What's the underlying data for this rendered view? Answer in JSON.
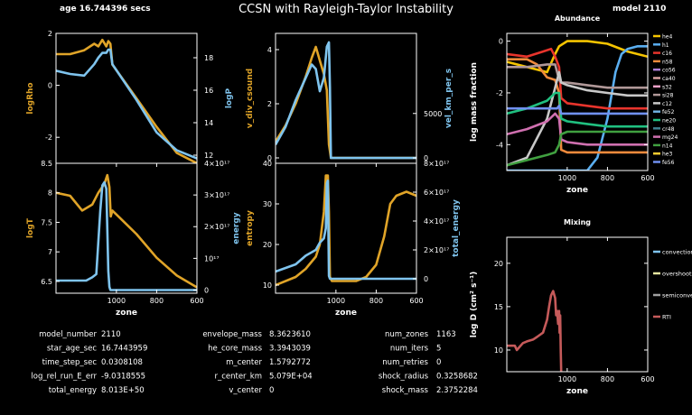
{
  "header": {
    "age": "age 16.744396 secs",
    "title": "CCSN with Rayleigh-Taylor Instability",
    "model": "model 2110"
  },
  "colors": {
    "gold": "#e0a428",
    "blue": "#7fc4ee",
    "red": "#c55a5a",
    "background": "#000000",
    "axes": "#ffffff"
  },
  "chart_data": [
    {
      "id": "logRho_logP",
      "type": "line",
      "xlabel": "",
      "xlim": [
        1300,
        600
      ],
      "x_ticks": [],
      "left_axis": {
        "label": "logRho",
        "ylim": [
          -3,
          2
        ],
        "ticks": [
          "2",
          "0",
          "-2"
        ],
        "tick_values": [
          2,
          0,
          -2
        ]
      },
      "right_axis": {
        "label": "logP",
        "ylim": [
          11.5,
          19.5
        ],
        "ticks": [
          "18",
          "16",
          "14",
          "12"
        ],
        "tick_values": [
          18,
          16,
          14,
          12
        ]
      },
      "series": [
        {
          "name": "logRho",
          "axis": "left",
          "color": "#e0a428",
          "x": [
            1300,
            1230,
            1160,
            1110,
            1090,
            1070,
            1050,
            1040,
            1030,
            1020,
            900,
            800,
            700,
            600
          ],
          "y": [
            1.2,
            1.2,
            1.35,
            1.6,
            1.5,
            1.75,
            1.5,
            1.7,
            1.6,
            0.8,
            -0.5,
            -1.6,
            -2.6,
            -3.0
          ]
        },
        {
          "name": "logP",
          "axis": "right",
          "color": "#7fc4ee",
          "x": [
            1300,
            1230,
            1160,
            1110,
            1090,
            1070,
            1050,
            1040,
            1030,
            1020,
            900,
            800,
            700,
            600
          ],
          "y": [
            17.2,
            17.0,
            16.9,
            17.6,
            18.0,
            18.3,
            18.3,
            18.5,
            18.5,
            17.6,
            15.4,
            13.4,
            12.3,
            11.8
          ]
        }
      ]
    },
    {
      "id": "logT_energy",
      "type": "line",
      "xlabel": "zone",
      "xlim": [
        1300,
        600
      ],
      "x_ticks": [
        "1000",
        "800",
        "600"
      ],
      "x_tick_values": [
        1000,
        800,
        600
      ],
      "left_axis": {
        "label": "logT",
        "ylim": [
          6.3,
          8.5
        ],
        "ticks": [
          "8.5",
          "8",
          "7.5",
          "7",
          "6.5"
        ],
        "tick_values": [
          8.5,
          8,
          7.5,
          7,
          6.5
        ]
      },
      "right_axis": {
        "label": "energy",
        "ylim": [
          -0.1,
          4.0
        ],
        "ticks": [
          "4×10¹⁷",
          "3×10¹⁷",
          "2×10¹⁷",
          "10¹⁷",
          "0"
        ],
        "tick_values": [
          4,
          3,
          2,
          1,
          0
        ]
      },
      "series": [
        {
          "name": "logT",
          "axis": "left",
          "color": "#e0a428",
          "x": [
            1300,
            1230,
            1170,
            1120,
            1090,
            1060,
            1045,
            1035,
            1028,
            1020,
            900,
            800,
            700,
            600
          ],
          "y": [
            8.0,
            7.95,
            7.7,
            7.8,
            8.0,
            8.15,
            8.3,
            8.1,
            7.6,
            7.7,
            7.3,
            6.9,
            6.6,
            6.4
          ]
        },
        {
          "name": "energy",
          "axis": "right",
          "color": "#7fc4ee",
          "x": [
            1300,
            1200,
            1150,
            1120,
            1100,
            1090,
            1080,
            1070,
            1060,
            1050,
            1040,
            1035,
            1030,
            1025,
            1000,
            900,
            800,
            700,
            600
          ],
          "y": [
            0.3,
            0.3,
            0.3,
            0.4,
            0.5,
            1.5,
            2.5,
            3.3,
            3.4,
            3.2,
            0.6,
            0.1,
            0.0,
            0.0,
            0.0,
            0.0,
            0.0,
            0.0,
            0.0
          ]
        }
      ]
    },
    {
      "id": "vdivcs_velkm",
      "type": "line",
      "xlabel": "",
      "xlim": [
        1300,
        600
      ],
      "x_ticks": [],
      "left_axis": {
        "label": "v_div_csound",
        "ylim": [
          -0.2,
          4.6
        ],
        "ticks": [
          "4",
          "2",
          "0"
        ],
        "tick_values": [
          4,
          2,
          0
        ]
      },
      "right_axis": {
        "label": "vel_km_per_s",
        "ylim": [
          -600,
          14000
        ],
        "ticks": [
          "5000",
          "0"
        ],
        "tick_values": [
          5000,
          0
        ]
      },
      "series": [
        {
          "name": "v_div_csound",
          "axis": "left",
          "color": "#e0a428",
          "x": [
            1300,
            1250,
            1200,
            1150,
            1120,
            1100,
            1080,
            1060,
            1045,
            1035,
            1025,
            1000,
            900,
            800,
            700,
            600
          ],
          "y": [
            0.6,
            1.2,
            2.0,
            3.0,
            3.7,
            4.1,
            3.6,
            3.1,
            2.5,
            0.5,
            0.0,
            0.0,
            0.0,
            0.0,
            0.0,
            0.0
          ]
        },
        {
          "name": "vel_km_per_s",
          "axis": "right",
          "color": "#7fc4ee",
          "x": [
            1300,
            1250,
            1200,
            1150,
            1120,
            1100,
            1080,
            1060,
            1045,
            1035,
            1030,
            1025,
            1000,
            900,
            800,
            700,
            600
          ],
          "y": [
            1500,
            3500,
            6500,
            9000,
            10500,
            10000,
            7500,
            9000,
            12500,
            13000,
            8000,
            0,
            0,
            0,
            0,
            0,
            0
          ]
        }
      ]
    },
    {
      "id": "entropy_totalenergy",
      "type": "line",
      "xlabel": "zone",
      "xlim": [
        1300,
        600
      ],
      "x_ticks": [
        "1000",
        "800",
        "600"
      ],
      "x_tick_values": [
        1000,
        800,
        600
      ],
      "left_axis": {
        "label": "entropy",
        "ylim": [
          8,
          40
        ],
        "ticks": [
          "40",
          "30",
          "20",
          "10"
        ],
        "tick_values": [
          40,
          30,
          20,
          10
        ]
      },
      "right_axis": {
        "label": "total_energy",
        "ylim": [
          -1.0,
          8.0
        ],
        "ticks": [
          "8×10¹⁷",
          "6×10¹⁷",
          "4×10¹⁷",
          "2×10¹⁷",
          "0"
        ],
        "tick_values": [
          8,
          6,
          4,
          2,
          0
        ]
      },
      "series": [
        {
          "name": "entropy",
          "axis": "left",
          "color": "#e0a428",
          "x": [
            1300,
            1200,
            1150,
            1100,
            1080,
            1060,
            1050,
            1040,
            1035,
            1030,
            1020,
            1000,
            900,
            850,
            800,
            760,
            730,
            700,
            650,
            600
          ],
          "y": [
            10,
            12,
            14,
            17,
            20,
            28,
            37,
            37,
            28,
            12,
            11,
            11,
            11,
            12,
            15,
            22,
            30,
            32,
            33,
            32
          ]
        },
        {
          "name": "total_energy",
          "axis": "right",
          "color": "#7fc4ee",
          "x": [
            1300,
            1200,
            1150,
            1100,
            1080,
            1060,
            1050,
            1045,
            1040,
            1035,
            1030,
            1000,
            900,
            800,
            700,
            600
          ],
          "y": [
            0.5,
            1.0,
            1.6,
            2.0,
            2.5,
            2.8,
            3.5,
            6.6,
            6.8,
            0.2,
            0.0,
            0.0,
            0.0,
            0.0,
            0.0,
            0.0
          ]
        }
      ]
    },
    {
      "id": "abundance",
      "type": "line",
      "title": "Abundance",
      "xlabel": "zone",
      "ylabel": "log mass fraction",
      "xlim": [
        1300,
        600
      ],
      "ylim": [
        -5,
        0.3
      ],
      "x_ticks": [
        "1000",
        "800",
        "600"
      ],
      "x_tick_values": [
        1000,
        800,
        600
      ],
      "y_ticks": [
        "0",
        "-2",
        "-4"
      ],
      "y_tick_values": [
        0,
        -2,
        -4
      ],
      "legend": [
        {
          "name": "he4",
          "color": "#f5c400"
        },
        {
          "name": "h1",
          "color": "#5aaef0"
        },
        {
          "name": "c16",
          "color": "#e8342c"
        },
        {
          "name": "n58",
          "color": "#f08a3c"
        },
        {
          "name": "co56",
          "color": "#b07fd8"
        },
        {
          "name": "ca40",
          "color": "#d9a0a0"
        },
        {
          "name": "s32",
          "color": "#f0a0c8"
        },
        {
          "name": "si28",
          "color": "#b09898"
        },
        {
          "name": "c12",
          "color": "#c8c8c8"
        },
        {
          "name": "fe52",
          "color": "#70b0e0"
        },
        {
          "name": "ne20",
          "color": "#20c080"
        },
        {
          "name": "cr48",
          "color": "#408090"
        },
        {
          "name": "mg24",
          "color": "#d070b0"
        },
        {
          "name": "n14",
          "color": "#40a040"
        },
        {
          "name": "he3",
          "color": "#ffcc30"
        },
        {
          "name": "fe56",
          "color": "#7090f0"
        }
      ],
      "series": [
        {
          "name": "he4",
          "color": "#f5c400",
          "x": [
            1300,
            1100,
            1060,
            1040,
            1000,
            900,
            800,
            700,
            600
          ],
          "y": [
            -0.8,
            -1.2,
            -0.5,
            -0.2,
            0.0,
            0.0,
            -0.1,
            -0.4,
            -0.6
          ]
        },
        {
          "name": "h1",
          "color": "#5aaef0",
          "x": [
            1300,
            1050,
            1035,
            1000,
            900,
            850,
            800,
            760,
            730,
            700,
            650,
            600
          ],
          "y": [
            -5,
            -5,
            -5,
            -5,
            -5,
            -4.5,
            -3.0,
            -1.2,
            -0.5,
            -0.3,
            -0.2,
            -0.2
          ]
        },
        {
          "name": "c16",
          "color": "#e8342c",
          "x": [
            1300,
            1200,
            1120,
            1080,
            1060,
            1040,
            1030,
            1000,
            900,
            800,
            700,
            600
          ],
          "y": [
            -0.5,
            -0.6,
            -0.4,
            -0.3,
            -0.6,
            -1.0,
            -2.2,
            -2.4,
            -2.5,
            -2.6,
            -2.6,
            -2.6
          ]
        },
        {
          "name": "n58",
          "color": "#f08a3c",
          "x": [
            1300,
            1200,
            1150,
            1100,
            1060,
            1040,
            1030,
            1000,
            900,
            800,
            700,
            600
          ],
          "y": [
            -0.7,
            -0.7,
            -0.9,
            -1.4,
            -1.5,
            -2.0,
            -4.2,
            -4.3,
            -4.3,
            -4.3,
            -4.3,
            -4.3
          ]
        },
        {
          "name": "si28",
          "color": "#b09898",
          "x": [
            1300,
            1200,
            1100,
            1060,
            1040,
            1030,
            1000,
            900,
            800,
            700,
            600
          ],
          "y": [
            -1.0,
            -1.0,
            -0.9,
            -0.9,
            -1.5,
            -1.6,
            -1.6,
            -1.7,
            -1.8,
            -1.8,
            -1.8
          ]
        },
        {
          "name": "c12",
          "color": "#c8c8c8",
          "x": [
            1300,
            1200,
            1100,
            1060,
            1040,
            1030,
            1000,
            900,
            800,
            700,
            600
          ],
          "y": [
            -4.8,
            -4.5,
            -3.0,
            -1.8,
            -1.2,
            -1.6,
            -1.7,
            -1.9,
            -2.0,
            -2.1,
            -2.1
          ]
        },
        {
          "name": "ne20",
          "color": "#20c080",
          "x": [
            1300,
            1200,
            1100,
            1060,
            1040,
            1030,
            1000,
            900,
            800,
            700,
            600
          ],
          "y": [
            -2.8,
            -2.6,
            -2.3,
            -2.0,
            -2.0,
            -3.0,
            -3.1,
            -3.2,
            -3.3,
            -3.3,
            -3.3
          ]
        },
        {
          "name": "fe56",
          "color": "#7090f0",
          "x": [
            1300,
            1200,
            1100,
            1050,
            1040,
            1030,
            1000,
            900,
            800,
            700,
            600
          ],
          "y": [
            -2.6,
            -2.6,
            -2.6,
            -2.6,
            -2.5,
            -2.8,
            -2.8,
            -2.8,
            -2.8,
            -2.8,
            -2.8
          ]
        },
        {
          "name": "mg24",
          "color": "#d070b0",
          "x": [
            1300,
            1200,
            1100,
            1060,
            1040,
            1030,
            1000,
            900,
            800,
            700,
            600
          ],
          "y": [
            -3.6,
            -3.4,
            -3.1,
            -2.8,
            -3.0,
            -3.8,
            -3.9,
            -4.0,
            -4.0,
            -4.0,
            -4.0
          ]
        },
        {
          "name": "n14",
          "color": "#40a040",
          "x": [
            1300,
            1200,
            1100,
            1060,
            1040,
            1030,
            1000,
            900,
            800,
            700,
            600
          ],
          "y": [
            -4.8,
            -4.6,
            -4.4,
            -4.3,
            -4.0,
            -3.6,
            -3.5,
            -3.5,
            -3.5,
            -3.5,
            -3.5
          ]
        }
      ]
    },
    {
      "id": "mixing",
      "type": "line",
      "title": "Mixing",
      "xlabel": "zone",
      "ylabel": "log D (cm² s⁻¹)",
      "xlim": [
        1300,
        600
      ],
      "ylim": [
        7.5,
        23
      ],
      "x_ticks": [
        "1000",
        "800",
        "600"
      ],
      "x_tick_values": [
        1000,
        800,
        600
      ],
      "y_ticks": [
        "20",
        "15",
        "10"
      ],
      "y_tick_values": [
        20,
        15,
        10
      ],
      "legend": [
        {
          "name": "convection",
          "color": "#7fc4ee"
        },
        {
          "name": "overshoot",
          "color": "#e6e6a0"
        },
        {
          "name": "semiconvection",
          "color": "#a0a0a0"
        },
        {
          "name": "RTI",
          "color": "#c55a5a"
        }
      ],
      "series": [
        {
          "name": "RTI",
          "color": "#c55a5a",
          "x": [
            1300,
            1260,
            1250,
            1220,
            1200,
            1170,
            1150,
            1120,
            1100,
            1090,
            1080,
            1070,
            1060,
            1055,
            1050,
            1045,
            1040,
            1038,
            1035,
            1032,
            1030
          ],
          "y": [
            10.5,
            10.5,
            10.0,
            10.8,
            11.0,
            11.2,
            11.5,
            12.0,
            13.5,
            15.0,
            16.3,
            16.8,
            16.0,
            14.0,
            14.5,
            13.0,
            14.5,
            12.0,
            14.0,
            10.0,
            7.5
          ]
        }
      ]
    }
  ],
  "info_table": {
    "columns": [
      [
        {
          "label": "model_number",
          "value": "2110"
        },
        {
          "label": "star_age_sec",
          "value": "16.7443959"
        },
        {
          "label": "time_step_sec",
          "value": "0.0308108"
        },
        {
          "label": "log_rel_run_E_err",
          "value": "-9.0318555"
        },
        {
          "label": "total_energy",
          "value": "8.013E+50"
        }
      ],
      [
        {
          "label": "envelope_mass",
          "value": "8.3623610"
        },
        {
          "label": "he_core_mass",
          "value": "3.3943039"
        },
        {
          "label": "m_center",
          "value": "1.5792772"
        },
        {
          "label": "r_center_km",
          "value": "5.079E+04"
        },
        {
          "label": "v_center",
          "value": "0"
        }
      ],
      [
        {
          "label": "num_zones",
          "value": "1163"
        },
        {
          "label": "num_iters",
          "value": "5"
        },
        {
          "label": "num_retries",
          "value": "0"
        },
        {
          "label": "shock_radius",
          "value": "0.3258682"
        },
        {
          "label": "shock_mass",
          "value": "2.3752284"
        }
      ]
    ]
  }
}
